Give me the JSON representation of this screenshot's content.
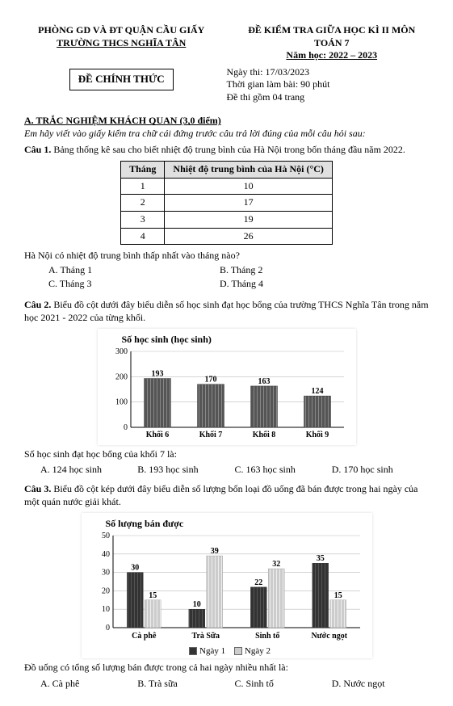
{
  "header": {
    "dept": "PHÒNG GD VÀ ĐT QUẬN CẦU GIẤY",
    "school": "TRƯỜNG THCS NGHĨA TÂN",
    "exam": "ĐỀ KIỂM TRA GIỮA HỌC KÌ II MÔN TOÁN 7",
    "year": "Năm học: 2022 – 2023",
    "badge": "ĐỀ CHÍNH THỨC",
    "date": "Ngày thi: 17/03/2023",
    "duration": "Thời gian làm bài: 90 phút",
    "pages": "Đề thi gồm 04 trang"
  },
  "sectionA": {
    "title": "A. TRẮC NGHIỆM KHÁCH QUAN (3,0 điểm)",
    "instr": "Em hãy viết vào giấy kiểm tra chữ cái đứng trước câu trả lời đúng của mỗi câu hỏi sau:"
  },
  "q1": {
    "label": "Câu 1.",
    "text": "Bảng thống kê sau cho biết nhiệt độ trung bình của Hà Nội trong bốn tháng đầu năm 2022.",
    "table": {
      "col1": "Tháng",
      "col2": "Nhiệt độ trung bình của Hà Nội (°C)",
      "rows": [
        {
          "m": "1",
          "v": "10"
        },
        {
          "m": "2",
          "v": "17"
        },
        {
          "m": "3",
          "v": "19"
        },
        {
          "m": "4",
          "v": "26"
        }
      ]
    },
    "ask": "Hà Nội có nhiệt độ trung bình thấp nhất vào tháng nào?",
    "A": "A. Tháng 1",
    "B": "B. Tháng 2",
    "C": "C. Tháng 3",
    "D": "D. Tháng 4"
  },
  "q2": {
    "label": "Câu 2.",
    "text": "Biểu đồ cột dưới đây biểu diễn số học sinh đạt học bổng của trường THCS Nghĩa Tân trong năm học 2021 - 2022 của từng khối.",
    "chart": {
      "title": "Số học sinh (học sinh)",
      "ymax": 300,
      "ystep": 100,
      "cats": [
        "Khối 6",
        "Khối 7",
        "Khối 8",
        "Khối 9"
      ],
      "vals": [
        193,
        170,
        163,
        124
      ],
      "bar_fill": "#555",
      "bar_stripe": "#888",
      "grid": "#bbb",
      "axis": "#000"
    },
    "ask": "Số học sinh đạt học bổng của khối 7 là:",
    "A": "A. 124 học sinh",
    "B": "B. 193 học sinh",
    "C": "C. 163 học sinh",
    "D": "D. 170 học sinh"
  },
  "q3": {
    "label": "Câu 3.",
    "text": "Biểu đồ cột kép dưới đây biểu diễn số lượng bốn loại đồ uống đã bán được trong hai ngày của một quán nước giải khát.",
    "chart": {
      "title": "Số lượng bán được",
      "ymax": 50,
      "ystep": 10,
      "cats": [
        "Cà phê",
        "Trà Sữa",
        "Sinh tố",
        "Nước ngọt"
      ],
      "day1": [
        30,
        10,
        22,
        35
      ],
      "day2": [
        15,
        39,
        32,
        15
      ],
      "c1": "#333",
      "c2": "#ccc",
      "grid": "#bbb",
      "axis": "#000",
      "legend1": "Ngày 1",
      "legend2": "Ngày 2"
    },
    "ask": "Đồ uống có tổng số lượng bán được trong cả hai ngày nhiều nhất là:",
    "A": "A. Cà phê",
    "B": "B. Trà sữa",
    "C": "C. Sinh tố",
    "D": "D. Nước ngọt"
  }
}
